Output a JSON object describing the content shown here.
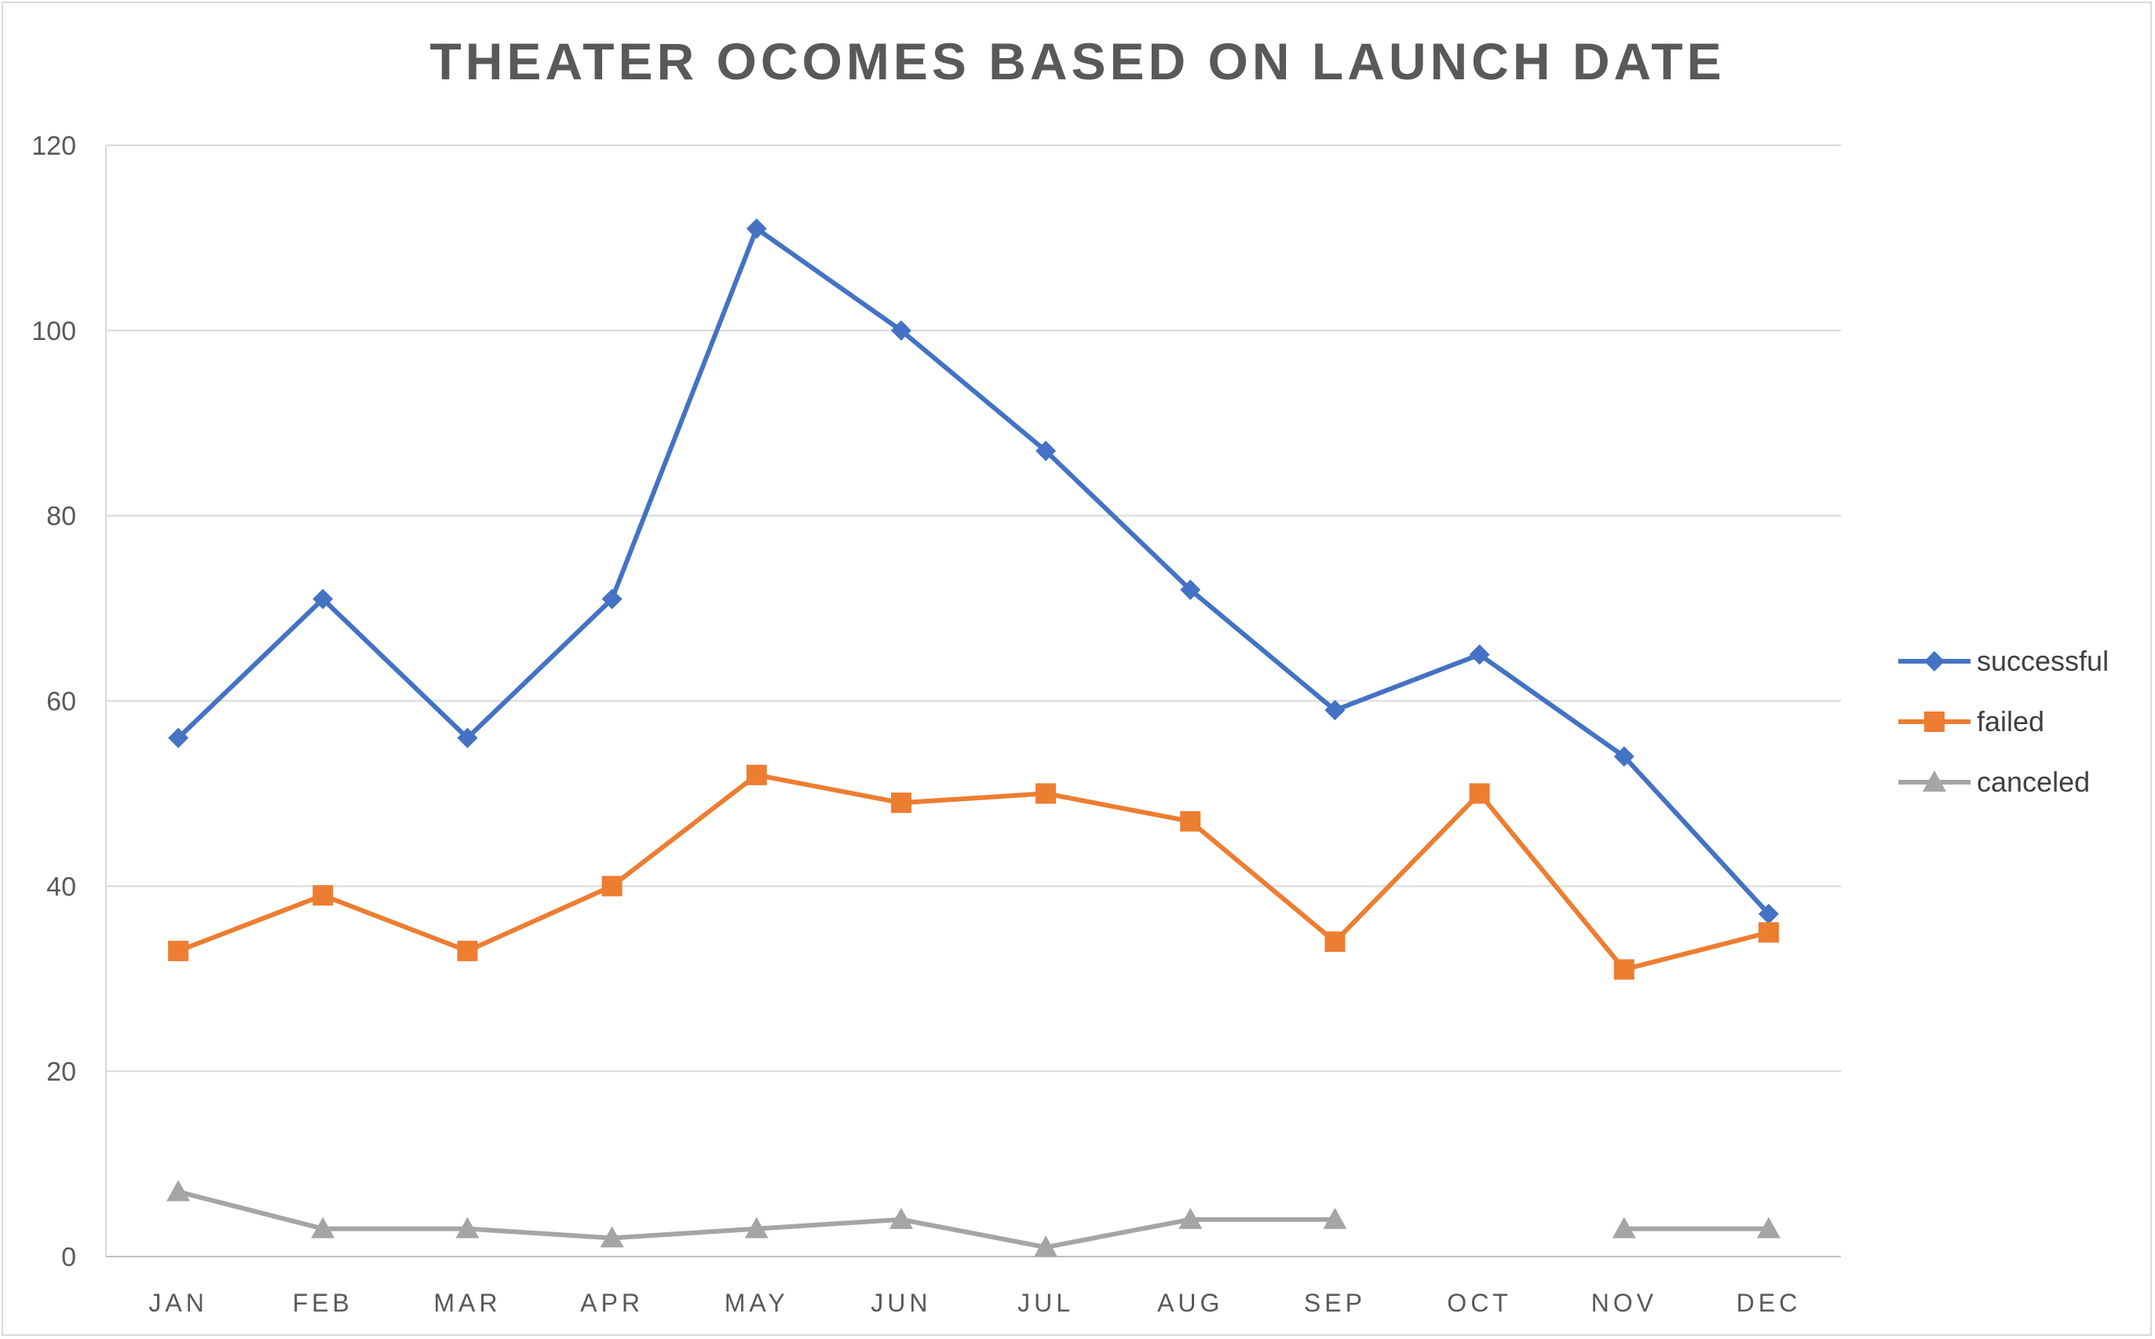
{
  "chart_data": {
    "type": "line",
    "title": "THEATER OCOMES BASED ON LAUNCH DATE",
    "xlabel": "",
    "ylabel": "",
    "categories": [
      "JAN",
      "FEB",
      "MAR",
      "APR",
      "MAY",
      "JUN",
      "JUL",
      "AUG",
      "SEP",
      "OCT",
      "NOV",
      "DEC"
    ],
    "ylim": [
      0,
      120
    ],
    "yticks": [
      0,
      20,
      40,
      60,
      80,
      100,
      120
    ],
    "grid": true,
    "legend_position": "right",
    "series": [
      {
        "name": "successful",
        "color": "#4472C4",
        "marker": "diamond",
        "values": [
          56,
          71,
          56,
          71,
          111,
          100,
          87,
          72,
          59,
          65,
          54,
          37
        ]
      },
      {
        "name": "failed",
        "color": "#ED7D31",
        "marker": "square",
        "values": [
          33,
          39,
          33,
          40,
          52,
          49,
          50,
          47,
          34,
          50,
          31,
          35
        ]
      },
      {
        "name": "canceled",
        "color": "#A5A5A5",
        "marker": "triangle",
        "values": [
          7,
          3,
          3,
          2,
          3,
          4,
          1,
          4,
          4,
          null,
          3,
          3
        ]
      }
    ]
  }
}
